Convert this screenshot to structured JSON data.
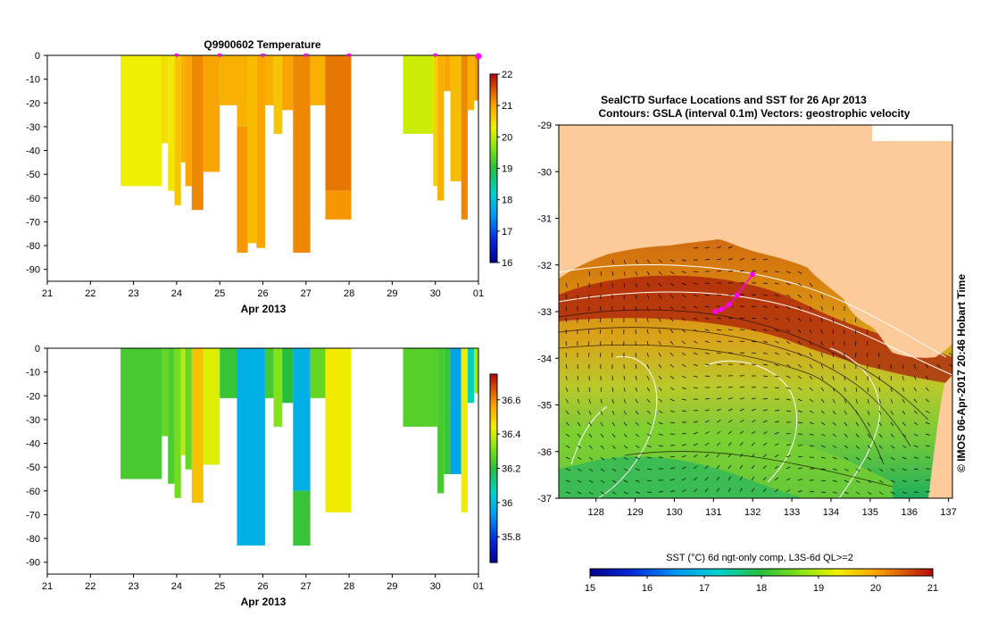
{
  "chart_data": [
    {
      "type": "heatmap",
      "id": "temp-section",
      "title": "Q9900602  Temperature",
      "xlabel": "Apr 2013",
      "x_ticks": [
        "21",
        "22",
        "23",
        "24",
        "25",
        "26",
        "27",
        "28",
        "29",
        "30",
        "01"
      ],
      "y_ticks": [
        "0",
        "-10",
        "-20",
        "-30",
        "-40",
        "-50",
        "-60",
        "-70",
        "-80",
        "-90"
      ],
      "xlim": [
        21,
        31
      ],
      "ylim": [
        -95,
        0
      ],
      "colorbar": {
        "min": 16,
        "max": 22,
        "ticks": [
          "16",
          "17",
          "18",
          "19",
          "20",
          "21",
          "22"
        ]
      },
      "cast_markers": [
        24.0,
        25.0,
        26.0,
        27.0,
        28.0,
        30.0,
        31.0
      ],
      "casts": [
        {
          "x0": 22.7,
          "x1": 23.65,
          "bottom": -55,
          "layers": [
            {
              "top": 0,
              "bottom": -55,
              "value": 20.3
            }
          ]
        },
        {
          "x0": 23.65,
          "x1": 23.8,
          "bottom": -37,
          "layers": [
            {
              "top": 0,
              "bottom": -37,
              "value": 20.5
            }
          ]
        },
        {
          "x0": 23.8,
          "x1": 23.95,
          "bottom": -57,
          "layers": [
            {
              "top": 0,
              "bottom": -57,
              "value": 20.4
            }
          ]
        },
        {
          "x0": 23.95,
          "x1": 24.1,
          "bottom": -63,
          "layers": [
            {
              "top": 0,
              "bottom": -63,
              "value": 20.7
            }
          ]
        },
        {
          "x0": 24.1,
          "x1": 24.2,
          "bottom": -45,
          "layers": [
            {
              "top": 0,
              "bottom": -45,
              "value": 20.9
            }
          ]
        },
        {
          "x0": 24.2,
          "x1": 24.35,
          "bottom": -55,
          "layers": [
            {
              "top": 0,
              "bottom": -55,
              "value": 21.0
            }
          ]
        },
        {
          "x0": 24.35,
          "x1": 24.62,
          "bottom": -65,
          "layers": [
            {
              "top": 0,
              "bottom": -65,
              "value": 21.2
            }
          ]
        },
        {
          "x0": 24.62,
          "x1": 25.0,
          "bottom": -49,
          "layers": [
            {
              "top": 0,
              "bottom": -49,
              "value": 21.0
            }
          ]
        },
        {
          "x0": 25.0,
          "x1": 25.4,
          "bottom": -21,
          "layers": [
            {
              "top": 0,
              "bottom": -21,
              "value": 20.9
            }
          ]
        },
        {
          "x0": 25.4,
          "x1": 25.65,
          "bottom": -83,
          "layers": [
            {
              "top": 0,
              "bottom": -30,
              "value": 20.9
            },
            {
              "top": -30,
              "bottom": -83,
              "value": 21.1
            }
          ]
        },
        {
          "x0": 25.65,
          "x1": 25.85,
          "bottom": -79,
          "layers": [
            {
              "top": 0,
              "bottom": -79,
              "value": 20.8
            }
          ]
        },
        {
          "x0": 25.85,
          "x1": 26.05,
          "bottom": -81,
          "layers": [
            {
              "top": 0,
              "bottom": -81,
              "value": 21.0
            }
          ]
        },
        {
          "x0": 26.05,
          "x1": 26.25,
          "bottom": -21,
          "layers": [
            {
              "top": 0,
              "bottom": -21,
              "value": 20.9
            }
          ]
        },
        {
          "x0": 26.25,
          "x1": 26.45,
          "bottom": -33,
          "layers": [
            {
              "top": 0,
              "bottom": -33,
              "value": 20.7
            }
          ]
        },
        {
          "x0": 26.45,
          "x1": 26.7,
          "bottom": -23,
          "layers": [
            {
              "top": 0,
              "bottom": -23,
              "value": 21.0
            }
          ]
        },
        {
          "x0": 26.7,
          "x1": 27.1,
          "bottom": -83,
          "layers": [
            {
              "top": 0,
              "bottom": -83,
              "value": 21.2
            }
          ]
        },
        {
          "x0": 27.1,
          "x1": 27.45,
          "bottom": -21,
          "layers": [
            {
              "top": 0,
              "bottom": -21,
              "value": 20.9
            }
          ]
        },
        {
          "x0": 27.45,
          "x1": 28.05,
          "bottom": -69,
          "layers": [
            {
              "top": 0,
              "bottom": -57,
              "value": 21.3
            },
            {
              "top": -57,
              "bottom": -69,
              "value": 21.1
            }
          ]
        },
        {
          "x0": 29.25,
          "x1": 29.95,
          "bottom": -33,
          "layers": [
            {
              "top": 0,
              "bottom": -33,
              "value": 20.1
            }
          ]
        },
        {
          "x0": 29.95,
          "x1": 30.05,
          "bottom": -55,
          "layers": [
            {
              "top": 0,
              "bottom": -55,
              "value": 20.6
            }
          ]
        },
        {
          "x0": 30.05,
          "x1": 30.2,
          "bottom": -61,
          "layers": [
            {
              "top": 0,
              "bottom": -61,
              "value": 20.9
            }
          ]
        },
        {
          "x0": 30.2,
          "x1": 30.35,
          "bottom": -15,
          "layers": [
            {
              "top": 0,
              "bottom": -15,
              "value": 21.0
            }
          ]
        },
        {
          "x0": 30.35,
          "x1": 30.6,
          "bottom": -53,
          "layers": [
            {
              "top": 0,
              "bottom": -53,
              "value": 20.8
            }
          ]
        },
        {
          "x0": 30.6,
          "x1": 30.75,
          "bottom": -69,
          "layers": [
            {
              "top": 0,
              "bottom": -69,
              "value": 21.2
            }
          ]
        },
        {
          "x0": 30.75,
          "x1": 30.9,
          "bottom": -23,
          "layers": [
            {
              "top": 0,
              "bottom": -23,
              "value": 20.9
            }
          ]
        },
        {
          "x0": 30.9,
          "x1": 31.0,
          "bottom": -19,
          "layers": [
            {
              "top": 0,
              "bottom": -19,
              "value": 21.1
            }
          ]
        }
      ]
    },
    {
      "type": "heatmap",
      "id": "salinity-section",
      "title": "",
      "xlabel": "Apr 2013",
      "x_ticks": [
        "21",
        "22",
        "23",
        "24",
        "25",
        "26",
        "27",
        "28",
        "29",
        "30",
        "01"
      ],
      "y_ticks": [
        "0",
        "-10",
        "-20",
        "-30",
        "-40",
        "-50",
        "-60",
        "-70",
        "-80",
        "-90"
      ],
      "xlim": [
        21,
        31
      ],
      "ylim": [
        -95,
        0
      ],
      "colorbar": {
        "min": 35.65,
        "max": 36.75,
        "ticks": [
          "35.8",
          "36",
          "36.2",
          "36.4",
          "36.6"
        ]
      },
      "casts": [
        {
          "x0": 22.7,
          "x1": 23.65,
          "bottom": -55,
          "layers": [
            {
              "top": 0,
              "bottom": -55,
              "value": 36.24
            }
          ]
        },
        {
          "x0": 23.65,
          "x1": 23.8,
          "bottom": -37,
          "layers": [
            {
              "top": 0,
              "bottom": -37,
              "value": 36.28
            }
          ]
        },
        {
          "x0": 23.8,
          "x1": 23.95,
          "bottom": -57,
          "layers": [
            {
              "top": 0,
              "bottom": -57,
              "value": 36.25
            }
          ]
        },
        {
          "x0": 23.95,
          "x1": 24.1,
          "bottom": -63,
          "layers": [
            {
              "top": 0,
              "bottom": -63,
              "value": 36.3
            }
          ]
        },
        {
          "x0": 24.1,
          "x1": 24.2,
          "bottom": -45,
          "layers": [
            {
              "top": 0,
              "bottom": -45,
              "value": 36.38
            }
          ]
        },
        {
          "x0": 24.2,
          "x1": 24.35,
          "bottom": -51,
          "layers": [
            {
              "top": 0,
              "bottom": -51,
              "value": 36.28
            }
          ]
        },
        {
          "x0": 24.35,
          "x1": 24.62,
          "bottom": -65,
          "layers": [
            {
              "top": 0,
              "bottom": -65,
              "value": 36.52
            }
          ]
        },
        {
          "x0": 24.62,
          "x1": 25.0,
          "bottom": -49,
          "layers": [
            {
              "top": 0,
              "bottom": -49,
              "value": 36.42
            }
          ]
        },
        {
          "x0": 25.0,
          "x1": 25.4,
          "bottom": -21,
          "layers": [
            {
              "top": 0,
              "bottom": -21,
              "value": 36.22
            }
          ]
        },
        {
          "x0": 25.4,
          "x1": 26.05,
          "bottom": -83,
          "layers": [
            {
              "top": 0,
              "bottom": -83,
              "value": 35.98
            }
          ]
        },
        {
          "x0": 26.05,
          "x1": 26.25,
          "bottom": -21,
          "layers": [
            {
              "top": 0,
              "bottom": -21,
              "value": 36.24
            }
          ]
        },
        {
          "x0": 26.25,
          "x1": 26.45,
          "bottom": -33,
          "layers": [
            {
              "top": 0,
              "bottom": -33,
              "value": 36.32
            }
          ]
        },
        {
          "x0": 26.45,
          "x1": 26.7,
          "bottom": -23,
          "layers": [
            {
              "top": 0,
              "bottom": -23,
              "value": 36.2
            }
          ]
        },
        {
          "x0": 26.7,
          "x1": 27.1,
          "bottom": -83,
          "layers": [
            {
              "top": 0,
              "bottom": -60,
              "value": 35.98
            },
            {
              "top": -60,
              "bottom": -83,
              "value": 36.22
            }
          ]
        },
        {
          "x0": 27.1,
          "x1": 27.45,
          "bottom": -21,
          "layers": [
            {
              "top": 0,
              "bottom": -21,
              "value": 36.28
            }
          ]
        },
        {
          "x0": 27.45,
          "x1": 28.05,
          "bottom": -69,
          "layers": [
            {
              "top": 0,
              "bottom": -69,
              "value": 36.45
            }
          ]
        },
        {
          "x0": 29.25,
          "x1": 30.05,
          "bottom": -33,
          "layers": [
            {
              "top": 0,
              "bottom": -33,
              "value": 36.26
            }
          ]
        },
        {
          "x0": 30.05,
          "x1": 30.2,
          "bottom": -61,
          "layers": [
            {
              "top": 0,
              "bottom": -61,
              "value": 36.24
            }
          ]
        },
        {
          "x0": 30.2,
          "x1": 30.35,
          "bottom": -53,
          "layers": [
            {
              "top": 0,
              "bottom": -53,
              "value": 36.22
            }
          ]
        },
        {
          "x0": 30.35,
          "x1": 30.6,
          "bottom": -53,
          "layers": [
            {
              "top": 0,
              "bottom": -53,
              "value": 35.96
            }
          ]
        },
        {
          "x0": 30.6,
          "x1": 30.75,
          "bottom": -69,
          "layers": [
            {
              "top": 0,
              "bottom": -69,
              "value": 36.45
            }
          ]
        },
        {
          "x0": 30.75,
          "x1": 30.9,
          "bottom": -23,
          "layers": [
            {
              "top": 0,
              "bottom": -23,
              "value": 36.08
            }
          ]
        },
        {
          "x0": 30.9,
          "x1": 31.0,
          "bottom": -19,
          "layers": [
            {
              "top": 0,
              "bottom": -19,
              "value": 36.35
            }
          ]
        }
      ]
    },
    {
      "type": "map",
      "id": "sst-map",
      "title": "SealCTD Surface Locations and SST for 26 Apr 2013",
      "subtitle": "Contours: GSLA (interval 0.1m) Vectors: geostrophic velocity",
      "x_ticks": [
        "128",
        "129",
        "130",
        "131",
        "132",
        "133",
        "134",
        "135",
        "136",
        "137"
      ],
      "y_ticks": [
        "-29",
        "-30",
        "-31",
        "-32",
        "-33",
        "-34",
        "-35",
        "-36",
        "-37"
      ],
      "lon_range": [
        127.05,
        137.1
      ],
      "lat_range": [
        -37,
        -29
      ],
      "side_label": "© IMOS 06-Apr-2017 20:46 Hobart Time",
      "colorbar": {
        "min": 15,
        "max": 21,
        "label": "SST (°C) 6d ngt-only comp, L3S-6d QL>=2",
        "ticks": [
          "15",
          "16",
          "17",
          "18",
          "19",
          "20",
          "21"
        ]
      },
      "seal_locations": [
        {
          "lon": 132.0,
          "lat": -32.2
        },
        {
          "lon": 131.6,
          "lat": -32.65
        },
        {
          "lon": 131.4,
          "lat": -32.85
        },
        {
          "lon": 131.2,
          "lat": -32.95
        },
        {
          "lon": 131.05,
          "lat": -33.0
        }
      ]
    }
  ],
  "colors": {
    "marker": "#ff00ff",
    "land": "#fccb99",
    "contour": "#ffffff",
    "vector": "#000000"
  }
}
